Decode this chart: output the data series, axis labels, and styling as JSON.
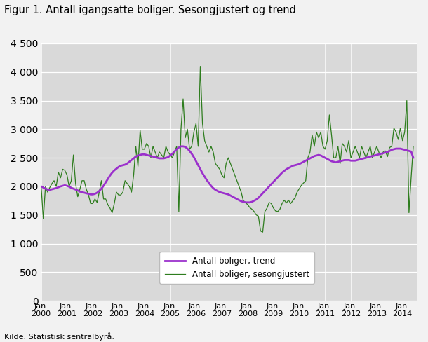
{
  "title": "Figur 1. Antall igangsatte boliger. Sesongjustert og trend",
  "source": "Kilde: Statistisk sentralbyrå.",
  "ylim": [
    0,
    4500
  ],
  "yticks": [
    0,
    500,
    1000,
    1500,
    2000,
    2500,
    3000,
    3500,
    4000,
    4500
  ],
  "xlabel_years": [
    2000,
    2001,
    2002,
    2003,
    2004,
    2005,
    2006,
    2007,
    2008,
    2009,
    2010,
    2011,
    2012,
    2013,
    2014
  ],
  "trend_color": "#9b30cc",
  "seasonal_color": "#2e7d1e",
  "legend_trend": "Antall boliger, trend",
  "legend_seasonal": "Antall boliger, sesongjustert",
  "bg_color": "#d9d9d9",
  "trend": [
    2000,
    1980,
    1960,
    1945,
    1940,
    1950,
    1960,
    1970,
    1985,
    2000,
    2010,
    2020,
    2010,
    1995,
    1975,
    1960,
    1945,
    1930,
    1910,
    1900,
    1890,
    1880,
    1870,
    1860,
    1860,
    1870,
    1890,
    1920,
    1960,
    2010,
    2070,
    2130,
    2190,
    2240,
    2280,
    2310,
    2340,
    2360,
    2370,
    2380,
    2400,
    2430,
    2460,
    2490,
    2520,
    2540,
    2550,
    2560,
    2560,
    2550,
    2540,
    2530,
    2520,
    2510,
    2500,
    2490,
    2490,
    2490,
    2500,
    2510,
    2540,
    2570,
    2610,
    2650,
    2680,
    2700,
    2700,
    2690,
    2660,
    2620,
    2570,
    2510,
    2440,
    2370,
    2300,
    2230,
    2170,
    2110,
    2060,
    2010,
    1970,
    1940,
    1920,
    1900,
    1890,
    1880,
    1870,
    1860,
    1840,
    1820,
    1800,
    1780,
    1760,
    1740,
    1730,
    1720,
    1720,
    1720,
    1730,
    1750,
    1770,
    1800,
    1840,
    1880,
    1920,
    1960,
    2000,
    2040,
    2080,
    2120,
    2160,
    2200,
    2240,
    2270,
    2300,
    2320,
    2340,
    2360,
    2370,
    2380,
    2390,
    2410,
    2430,
    2450,
    2470,
    2490,
    2510,
    2530,
    2540,
    2550,
    2540,
    2520,
    2500,
    2480,
    2460,
    2440,
    2430,
    2420,
    2430,
    2440,
    2450,
    2460,
    2460,
    2460,
    2450,
    2450,
    2450,
    2460,
    2470,
    2480,
    2490,
    2500,
    2510,
    2520,
    2530,
    2540,
    2550,
    2560,
    2570,
    2580,
    2590,
    2600,
    2620,
    2640,
    2650,
    2660,
    2660,
    2660,
    2650,
    2640,
    2630,
    2620,
    2610,
    2500
  ],
  "seasonal": [
    2000,
    1430,
    2000,
    1900,
    1980,
    2050,
    2100,
    2000,
    2250,
    2150,
    2300,
    2280,
    2200,
    2000,
    2100,
    2550,
    2050,
    1820,
    1950,
    2100,
    2100,
    1950,
    1850,
    1700,
    1700,
    1780,
    1720,
    1900,
    2100,
    1780,
    1780,
    1680,
    1620,
    1540,
    1700,
    1900,
    1850,
    1850,
    1900,
    2100,
    2050,
    2000,
    1900,
    2200,
    2700,
    2350,
    2980,
    2650,
    2650,
    2750,
    2700,
    2500,
    2700,
    2600,
    2500,
    2600,
    2550,
    2500,
    2700,
    2600,
    2550,
    2500,
    2600,
    2700,
    1560,
    3000,
    3530,
    2850,
    3000,
    2650,
    2700,
    2950,
    3100,
    2700,
    4100,
    3100,
    2800,
    2700,
    2600,
    2700,
    2600,
    2400,
    2350,
    2300,
    2200,
    2150,
    2400,
    2500,
    2400,
    2300,
    2200,
    2100,
    2000,
    1900,
    1750,
    1720,
    1680,
    1630,
    1600,
    1560,
    1500,
    1480,
    1220,
    1200,
    1560,
    1620,
    1720,
    1700,
    1620,
    1570,
    1560,
    1600,
    1700,
    1760,
    1710,
    1760,
    1700,
    1750,
    1800,
    1900,
    1960,
    2020,
    2060,
    2100,
    2500,
    2600,
    2900,
    2700,
    2950,
    2850,
    2950,
    2700,
    2650,
    2800,
    3250,
    2900,
    2500,
    2500,
    2700,
    2400,
    2750,
    2700,
    2600,
    2800,
    2500,
    2600,
    2700,
    2600,
    2500,
    2700,
    2600,
    2500,
    2600,
    2700,
    2500,
    2600,
    2700,
    2600,
    2500,
    2600,
    2620,
    2520,
    2680,
    2700,
    3020,
    2950,
    2820,
    3020,
    2800,
    2950,
    3500,
    1540,
    2150,
    2700
  ]
}
